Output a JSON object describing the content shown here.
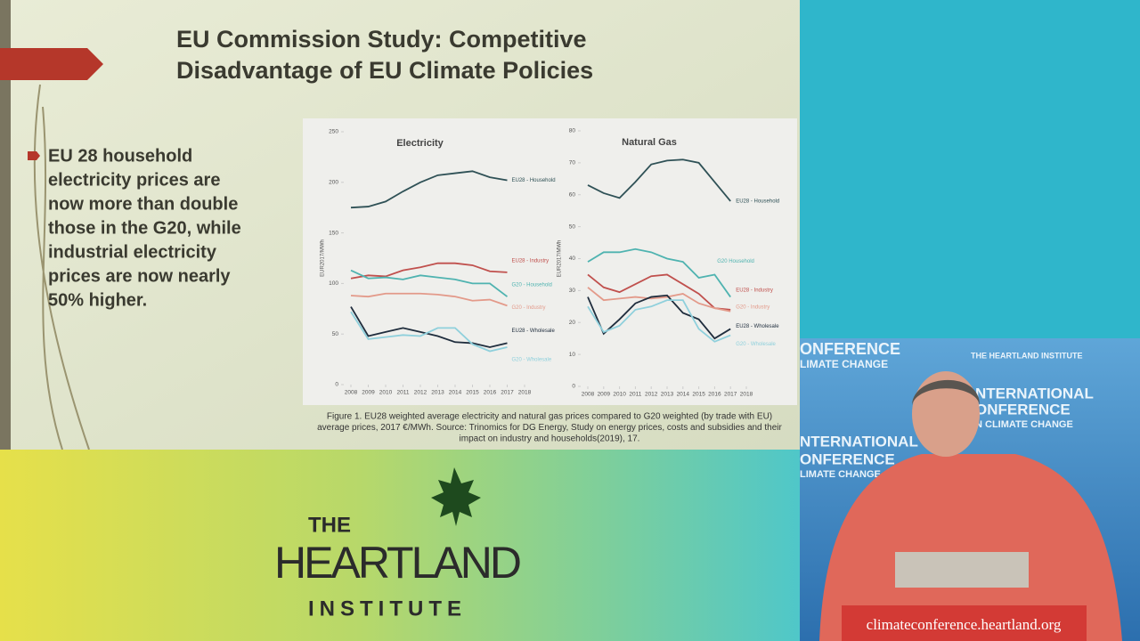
{
  "slide": {
    "title_line1": "EU Commission Study: Competitive",
    "title_line2": "Disadvantage of EU Climate Policies",
    "bullet": [
      "EU 28 household",
      "electricity prices are",
      "now more than double",
      "those in the G20, while",
      "industrial  electricity",
      "prices are now nearly",
      "50% higher."
    ],
    "caption": [
      "Figure 1. EU28 weighted average electricity and natural gas prices compared to G20 weighted (by trade with EU)",
      "average prices, 2017 €/MWh. Source: Trinomics for DG Energy, Study on energy prices, costs and subsidies and their",
      "impact on industry and households(2019), 17."
    ]
  },
  "chart_data": [
    {
      "type": "line",
      "title": "Electricity",
      "y_label": "EUR2017/MWh",
      "x": [
        2008,
        2009,
        2010,
        2011,
        2012,
        2013,
        2014,
        2015,
        2016,
        2017
      ],
      "xlim": [
        2008,
        2018
      ],
      "xticks": [
        2008,
        2009,
        2010,
        2011,
        2012,
        2013,
        2014,
        2015,
        2016,
        2017,
        2018
      ],
      "ylim": [
        0,
        250
      ],
      "yticks": [
        0,
        50,
        100,
        150,
        200,
        250
      ],
      "series": [
        {
          "name": "EU28 - Household",
          "color": "#2f5156",
          "values": [
            175,
            176,
            181,
            191,
            200,
            207,
            209,
            211,
            205,
            202
          ]
        },
        {
          "name": "EU28 - Industry",
          "color": "#c0504d",
          "values": [
            105,
            108,
            107,
            113,
            116,
            120,
            120,
            118,
            112,
            111
          ]
        },
        {
          "name": "G20 - Household",
          "color": "#4fb3b0",
          "values": [
            113,
            105,
            106,
            104,
            108,
            106,
            104,
            100,
            100,
            87
          ]
        },
        {
          "name": "G20 - Industry",
          "color": "#e39a8a",
          "values": [
            88,
            87,
            90,
            90,
            90,
            89,
            87,
            83,
            84,
            78
          ]
        },
        {
          "name": "EU28 - Wholesale",
          "color": "#1f2d3d",
          "values": [
            77,
            48,
            52,
            56,
            52,
            48,
            42,
            41,
            37,
            41
          ]
        },
        {
          "name": "G20 - Wholesale",
          "color": "#8fd0dc",
          "values": [
            72,
            45,
            47,
            49,
            48,
            56,
            56,
            40,
            33,
            37
          ]
        }
      ]
    },
    {
      "type": "line",
      "title": "Natural Gas",
      "y_label": "EUR2017/MWh",
      "x": [
        2008,
        2009,
        2010,
        2011,
        2012,
        2013,
        2014,
        2015,
        2016,
        2017
      ],
      "xlim": [
        2008,
        2018
      ],
      "xticks": [
        2008,
        2009,
        2010,
        2011,
        2012,
        2013,
        2014,
        2015,
        2016,
        2017,
        2018
      ],
      "ylim": [
        0,
        80
      ],
      "yticks": [
        0,
        10,
        20,
        30,
        40,
        50,
        60,
        70,
        80
      ],
      "series": [
        {
          "name": "EU28 - Household",
          "color": "#2f5156",
          "values": [
            63,
            60.5,
            59,
            64,
            69.5,
            70.7,
            71,
            70,
            64,
            58
          ]
        },
        {
          "name": "G20 Household",
          "color": "#4fb3b0",
          "values": [
            39,
            42,
            42,
            43,
            42,
            40,
            39,
            34,
            35,
            28
          ]
        },
        {
          "name": "EU28 - Industry",
          "color": "#c0504d",
          "values": [
            35,
            31,
            29.5,
            32,
            34.5,
            35,
            32,
            29,
            24.5,
            24
          ]
        },
        {
          "name": "G20 - Industry",
          "color": "#e39a8a",
          "values": [
            31,
            27,
            27.5,
            28,
            27.5,
            28,
            29,
            26,
            24.5,
            23.5
          ]
        },
        {
          "name": "EU28 - Wholesale",
          "color": "#1f2d3d",
          "values": [
            28,
            16.5,
            21,
            26,
            28,
            28.5,
            23,
            21,
            15,
            18
          ]
        },
        {
          "name": "G20 - Wholesale",
          "color": "#8fd0dc",
          "values": [
            25,
            17,
            19,
            24,
            25,
            27,
            27,
            18,
            14,
            16
          ]
        }
      ]
    }
  ],
  "logo": {
    "line1": "THE",
    "line2": "HEARTLAND",
    "line3": "INSTITUTE"
  },
  "backdrop": [
    "ONFERENCE",
    "LIMATE CHANGE",
    "THE HEARTLAND INSTITUTE",
    "NTERNATIONAL",
    "ONFERENCE",
    "N CLIMATE CHANGE",
    "NTERNATIONAL",
    "ONFERENCE",
    "LIMATE CHANGE"
  ],
  "banner": "climateconference.heartland.org"
}
